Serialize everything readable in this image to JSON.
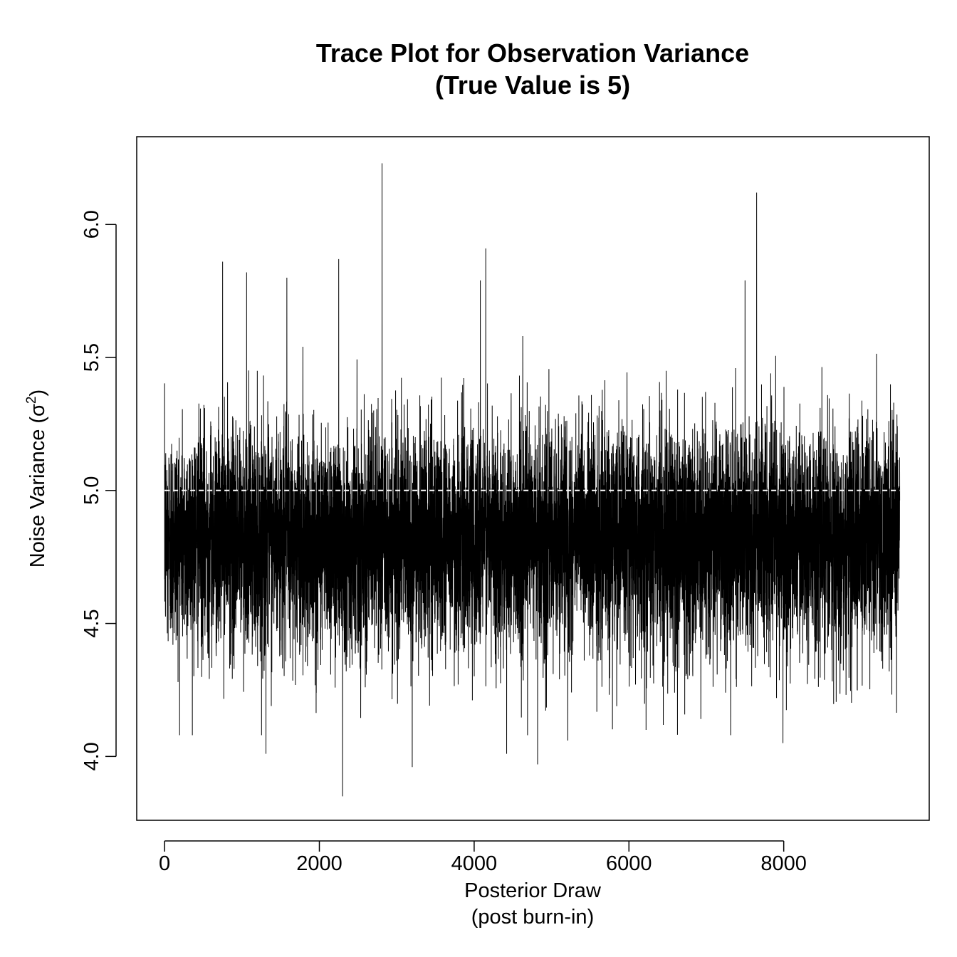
{
  "chart_data": {
    "type": "line",
    "title": [
      "Trace Plot for Observation Variance",
      "(True Value is 5)"
    ],
    "xlabel": [
      "Posterior Draw",
      "(post burn-in)"
    ],
    "ylabel": {
      "text": "Noise Variance (",
      "symbol": "σ",
      "superscript": "2",
      "close": ")"
    },
    "xlim": [
      -360,
      9880
    ],
    "ylim": [
      3.76,
      6.33
    ],
    "x_ticks": [
      0,
      2000,
      4000,
      6000,
      8000
    ],
    "y_ticks": [
      4.0,
      4.5,
      5.0,
      5.5,
      6.0
    ],
    "x_tick_labels": [
      "0",
      "2000",
      "4000",
      "6000",
      "8000"
    ],
    "y_tick_labels": [
      "4.0",
      "4.5",
      "5.0",
      "5.5",
      "6.0"
    ],
    "reference_line": {
      "y": 5.0,
      "style": "dashed",
      "color": "#ffffff"
    },
    "series": [
      {
        "n_draws": 9500,
        "color": "#000000",
        "mean": 4.82,
        "sd": 0.21,
        "spikes": [
          {
            "x": 2810,
            "y": 6.23
          },
          {
            "x": 7650,
            "y": 6.12
          },
          {
            "x": 4150,
            "y": 5.91
          },
          {
            "x": 2250,
            "y": 5.87
          },
          {
            "x": 750,
            "y": 5.86
          },
          {
            "x": 1060,
            "y": 5.82
          },
          {
            "x": 1580,
            "y": 5.8
          },
          {
            "x": 7500,
            "y": 5.79
          },
          {
            "x": 4080,
            "y": 5.79
          },
          {
            "x": 2300,
            "y": 3.85
          },
          {
            "x": 3200,
            "y": 3.96
          },
          {
            "x": 4820,
            "y": 3.97
          },
          {
            "x": 1310,
            "y": 4.01
          },
          {
            "x": 4420,
            "y": 4.01
          },
          {
            "x": 7990,
            "y": 4.05
          },
          {
            "x": 5210,
            "y": 4.06
          },
          {
            "x": 4690,
            "y": 4.08
          }
        ]
      }
    ],
    "grid": false,
    "legend": "none"
  }
}
